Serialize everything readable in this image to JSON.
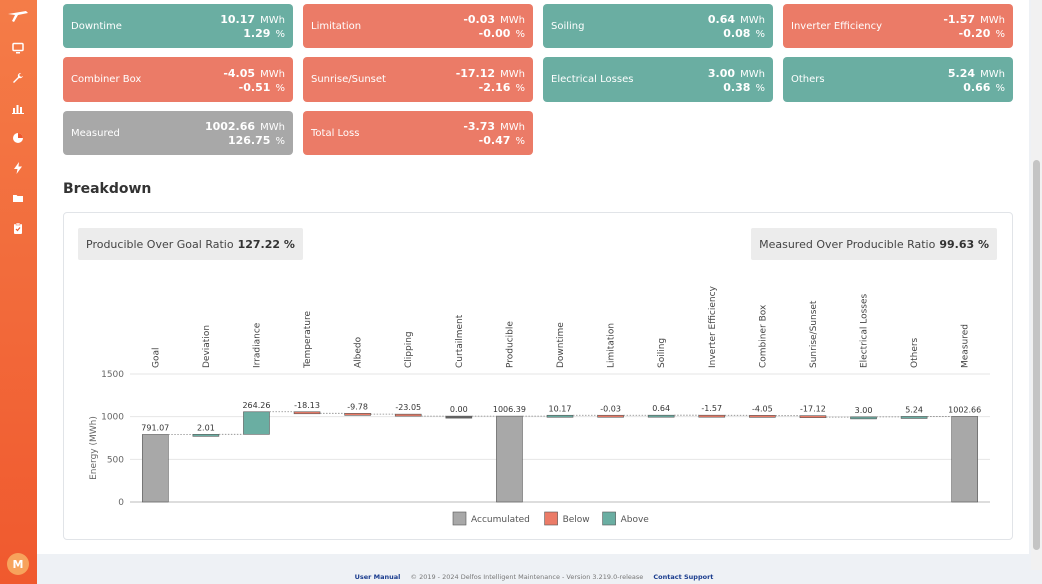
{
  "sidebar": {
    "icons": [
      "logo-icon",
      "monitor-icon",
      "wrench-icon",
      "bar-chart-icon",
      "pie-chart-icon",
      "lightning-icon",
      "folder-icon",
      "clipboard-icon"
    ],
    "avatar": "M",
    "color": "#f0592e"
  },
  "cards": [
    {
      "label": "Downtime",
      "value": "10.17",
      "unit": "MWh",
      "percent": "1.29",
      "pct_unit": "%",
      "color": "teal"
    },
    {
      "label": "Limitation",
      "value": "-0.03",
      "unit": "MWh",
      "percent": "-0.00",
      "pct_unit": "%",
      "color": "salmon"
    },
    {
      "label": "Soiling",
      "value": "0.64",
      "unit": "MWh",
      "percent": "0.08",
      "pct_unit": "%",
      "color": "teal"
    },
    {
      "label": "Inverter Efficiency",
      "value": "-1.57",
      "unit": "MWh",
      "percent": "-0.20",
      "pct_unit": "%",
      "color": "salmon"
    },
    {
      "label": "Combiner Box",
      "value": "-4.05",
      "unit": "MWh",
      "percent": "-0.51",
      "pct_unit": "%",
      "color": "salmon"
    },
    {
      "label": "Sunrise/Sunset",
      "value": "-17.12",
      "unit": "MWh",
      "percent": "-2.16",
      "pct_unit": "%",
      "color": "salmon"
    },
    {
      "label": "Electrical Losses",
      "value": "3.00",
      "unit": "MWh",
      "percent": "0.38",
      "pct_unit": "%",
      "color": "teal"
    },
    {
      "label": "Others",
      "value": "5.24",
      "unit": "MWh",
      "percent": "0.66",
      "pct_unit": "%",
      "color": "teal"
    },
    {
      "label": "Measured",
      "value": "1002.66",
      "unit": "MWh",
      "percent": "126.75",
      "pct_unit": "%",
      "color": "gray"
    },
    {
      "label": "Total Loss",
      "value": "-3.73",
      "unit": "MWh",
      "percent": "-0.47",
      "pct_unit": "%",
      "color": "salmon"
    }
  ],
  "breakdown": {
    "title": "Breakdown",
    "producible_ratio_label": "Producible Over Goal Ratio",
    "producible_ratio_value": "127.22 %",
    "measured_ratio_label": "Measured Over Producible Ratio",
    "measured_ratio_value": "99.63 %"
  },
  "chart_data": {
    "type": "bar",
    "subtype": "waterfall",
    "ylabel": "Energy (MWh)",
    "ylim": [
      0,
      1500
    ],
    "yticks": [
      0,
      500,
      1000,
      1500
    ],
    "categories": [
      "Goal",
      "Deviation",
      "Irradiance",
      "Temperature",
      "Albedo",
      "Clipping",
      "Curtailment",
      "Producible",
      "Downtime",
      "Limitation",
      "Soiling",
      "Inverter Efficiency",
      "Combiner Box",
      "Sunrise/Sunset",
      "Electrical Losses",
      "Others",
      "Measured"
    ],
    "values": [
      791.07,
      2.01,
      264.26,
      -18.13,
      -9.78,
      -23.05,
      0.0,
      1006.39,
      10.17,
      -0.03,
      0.64,
      -1.57,
      -4.05,
      -17.12,
      3.0,
      5.24,
      1002.66
    ],
    "value_labels": [
      "791.07",
      "2.01",
      "264.26",
      "-18.13",
      "-9.78",
      "-23.05",
      "0.00",
      "1006.39",
      "10.17",
      "-0.03",
      "0.64",
      "-1.57",
      "-4.05",
      "-17.12",
      "3.00",
      "5.24",
      "1002.66"
    ],
    "kinds": [
      "accumulated",
      "delta",
      "delta",
      "delta",
      "delta",
      "delta",
      "delta",
      "accumulated",
      "delta",
      "delta",
      "delta",
      "delta",
      "delta",
      "delta",
      "delta",
      "delta",
      "accumulated"
    ],
    "legend": [
      {
        "label": "Accumulated",
        "color": "#a8a8a8"
      },
      {
        "label": "Below",
        "color": "#eb7b67"
      },
      {
        "label": "Above",
        "color": "#6aaea2"
      }
    ],
    "colors": {
      "accumulated": "#a8a8a8",
      "below": "#eb7b67",
      "above": "#6aaea2",
      "neutral": "#666666"
    }
  },
  "footer": {
    "user_manual": "User Manual",
    "copyright": "© 2019 - 2024 Delfos Intelligent Maintenance - Version 3.219.0-release",
    "contact_support": "Contact Support"
  }
}
